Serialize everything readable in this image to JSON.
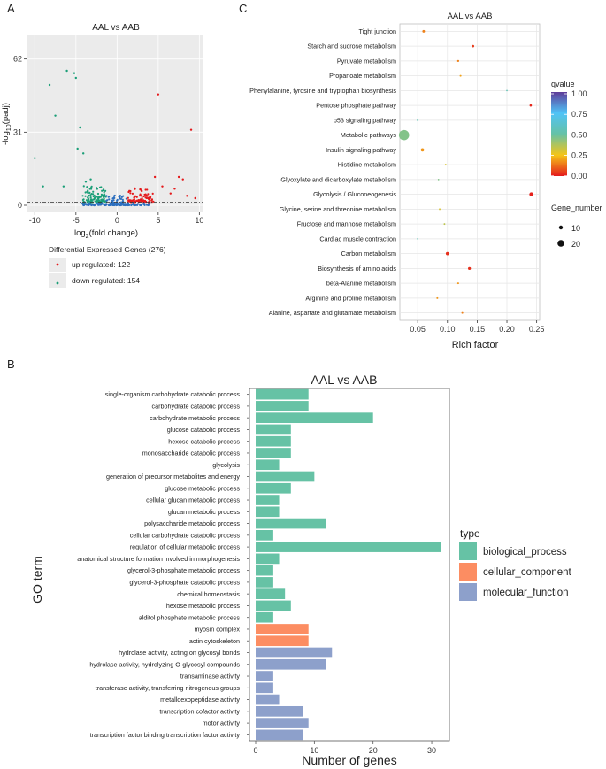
{
  "panels": {
    "a": "A",
    "b": "B",
    "c": "C"
  },
  "colors": {
    "up": "#e41a1c",
    "down": "#1a9e77",
    "nonsig": "#2c6fbf",
    "biological_process": "#66c2a5",
    "cellular_component": "#fc8d62",
    "molecular_function": "#8da0cb",
    "qvalue_gradient": [
      "#e41a1c",
      "#f5c518",
      "#66c2a5",
      "#4fc3f7",
      "#5e3c99"
    ]
  },
  "chart_data": [
    {
      "id": "volcano",
      "type": "scatter",
      "title": "AAL vs AAB",
      "xlabel": "log2(fold change)",
      "xlabel_main": "log",
      "xlabel_sub": "2",
      "xlabel_tail": "(fold change)",
      "ylabel_pre": "-log",
      "ylabel_sub": "10",
      "ylabel_tail": "(padj)",
      "xlim": [
        -11,
        10.5
      ],
      "ylim": [
        -3,
        72
      ],
      "xticks": [
        -10,
        -5,
        0,
        5,
        10
      ],
      "yticks": [
        0,
        31,
        62
      ],
      "threshold_y": 1.3,
      "up_points": [
        [
          5,
          47
        ],
        [
          9,
          32
        ],
        [
          7.5,
          12
        ],
        [
          8,
          11
        ],
        [
          5.5,
          8
        ],
        [
          6.5,
          5
        ],
        [
          8.5,
          4
        ],
        [
          9.5,
          3
        ],
        [
          4.6,
          12
        ],
        [
          7,
          7
        ],
        [
          3,
          6
        ]
      ],
      "down_points": [
        [
          -5.2,
          56
        ],
        [
          -5,
          54
        ],
        [
          -6.1,
          57
        ],
        [
          -8.2,
          51
        ],
        [
          -7.5,
          38
        ],
        [
          -4.5,
          33
        ],
        [
          -4.8,
          24
        ],
        [
          -4.1,
          22
        ],
        [
          -10,
          20
        ],
        [
          -9,
          8
        ],
        [
          -6.5,
          8
        ],
        [
          -3.2,
          11
        ],
        [
          -3.8,
          10
        ]
      ],
      "legend": {
        "title": "Differential Expressed Genes (276)",
        "up_label": "up regulated: 122",
        "down_label": "down regulated: 154"
      }
    },
    {
      "id": "kegg",
      "type": "scatter",
      "title": "AAL vs AAB",
      "xlabel": "Rich factor",
      "xlim": [
        0.02,
        0.255
      ],
      "xticks": [
        0.05,
        0.1,
        0.15,
        0.2,
        0.25
      ],
      "xtick_labels": [
        "0.05",
        "0.10",
        "0.15",
        "0.20",
        "0.25"
      ],
      "points": [
        {
          "term": "Tight junction",
          "rich": 0.06,
          "qvalue": 0.15,
          "genes": 12
        },
        {
          "term": "Starch and sucrose metabolism",
          "rich": 0.143,
          "qvalue": 0.05,
          "genes": 11
        },
        {
          "term": "Pyruvate metabolism",
          "rich": 0.118,
          "qvalue": 0.15,
          "genes": 10
        },
        {
          "term": "Propanoate metabolism",
          "rich": 0.122,
          "qvalue": 0.2,
          "genes": 9
        },
        {
          "term": "Phenylalanine, tyrosine and tryptophan biosynthesis",
          "rich": 0.2,
          "qvalue": 0.55,
          "genes": 7
        },
        {
          "term": "Pentose phosphate pathway",
          "rich": 0.24,
          "qvalue": 0.02,
          "genes": 11
        },
        {
          "term": "p53 signaling pathway",
          "rich": 0.05,
          "qvalue": 0.55,
          "genes": 8
        },
        {
          "term": "Metabolic pathways",
          "rich": 0.027,
          "qvalue": 0.45,
          "genes": 27
        },
        {
          "term": "Insulin signaling pathway",
          "rich": 0.058,
          "qvalue": 0.18,
          "genes": 14
        },
        {
          "term": "Histidine metabolism",
          "rich": 0.097,
          "qvalue": 0.3,
          "genes": 8
        },
        {
          "term": "Glyoxylate and dicarboxylate metabolism",
          "rich": 0.085,
          "qvalue": 0.45,
          "genes": 7
        },
        {
          "term": "Glycolysis / Gluconeogenesis",
          "rich": 0.241,
          "qvalue": 0.01,
          "genes": 16
        },
        {
          "term": "Glycine, serine and threonine metabolism",
          "rich": 0.087,
          "qvalue": 0.3,
          "genes": 8
        },
        {
          "term": "Fructose and mannose metabolism",
          "rich": 0.095,
          "qvalue": 0.35,
          "genes": 8
        },
        {
          "term": "Cardiac muscle contraction",
          "rich": 0.05,
          "qvalue": 0.55,
          "genes": 7
        },
        {
          "term": "Carbon metabolism",
          "rich": 0.1,
          "qvalue": 0.03,
          "genes": 14
        },
        {
          "term": "Biosynthesis of amino acids",
          "rich": 0.137,
          "qvalue": 0.03,
          "genes": 13
        },
        {
          "term": "beta-Alanine metabolism",
          "rich": 0.118,
          "qvalue": 0.18,
          "genes": 9
        },
        {
          "term": "Arginine and proline metabolism",
          "rich": 0.083,
          "qvalue": 0.18,
          "genes": 9
        },
        {
          "term": "Alanine, aspartate and glutamate metabolism",
          "rich": 0.125,
          "qvalue": 0.15,
          "genes": 9
        }
      ],
      "qvalue_legend": {
        "title": "qvalue",
        "ticks": [
          "1.00",
          "0.75",
          "0.50",
          "0.25",
          "0.00"
        ]
      },
      "size_legend": {
        "title": "Gene_number",
        "items": [
          "10",
          "20"
        ]
      }
    },
    {
      "id": "go",
      "type": "bar",
      "orientation": "horizontal",
      "title": "AAL vs AAB",
      "xlabel": "Number of genes",
      "ylabel": "GO term",
      "xlim": [
        0,
        31.5
      ],
      "xticks": [
        0,
        10,
        20,
        30
      ],
      "categories": [
        "single-organism carbohydrate catabolic process",
        "carbohydrate catabolic process",
        "carbohydrate metabolic process",
        "glucose catabolic process",
        "hexose catabolic process",
        "monosaccharide catabolic process",
        "glycolysis",
        "generation of precursor metabolites and energy",
        "glucose metabolic process",
        "cellular glucan metabolic process",
        "glucan metabolic process",
        "polysaccharide metabolic process",
        "cellular carbohydrate catabolic process",
        "regulation of cellular metabolic process",
        "anatomical structure formation involved in morphogenesis",
        "glycerol-3-phosphate metabolic process",
        "glycerol-3-phosphate catabolic process",
        "chemical homeostasis",
        "hexose metabolic process",
        "alditol phosphate metabolic process",
        "myosin complex",
        "actin cytoskeleton",
        "hydrolase activity, acting on glycosyl bonds",
        "hydrolase activity, hydrolyzing O-glycosyl compounds",
        "transaminase activity",
        "transferase activity, transferring nitrogenous groups",
        "metalloexopeptidase activity",
        "transcription cofactor activity",
        "motor activity",
        "transcription factor binding transcription factor activity"
      ],
      "values": [
        9,
        9,
        20,
        6,
        6,
        6,
        4,
        10,
        6,
        4,
        4,
        12,
        3,
        31.5,
        4,
        3,
        3,
        5,
        6,
        3,
        9,
        9,
        13,
        12,
        3,
        3,
        4,
        8,
        9,
        8
      ],
      "types": [
        "biological_process",
        "biological_process",
        "biological_process",
        "biological_process",
        "biological_process",
        "biological_process",
        "biological_process",
        "biological_process",
        "biological_process",
        "biological_process",
        "biological_process",
        "biological_process",
        "biological_process",
        "biological_process",
        "biological_process",
        "biological_process",
        "biological_process",
        "biological_process",
        "biological_process",
        "biological_process",
        "cellular_component",
        "cellular_component",
        "molecular_function",
        "molecular_function",
        "molecular_function",
        "molecular_function",
        "molecular_function",
        "molecular_function",
        "molecular_function",
        "molecular_function"
      ],
      "legend": {
        "title": "type",
        "items": [
          {
            "key": "biological_process",
            "label": "biological_process"
          },
          {
            "key": "cellular_component",
            "label": "cellular_component"
          },
          {
            "key": "molecular_function",
            "label": "molecular_function"
          }
        ]
      }
    }
  ]
}
